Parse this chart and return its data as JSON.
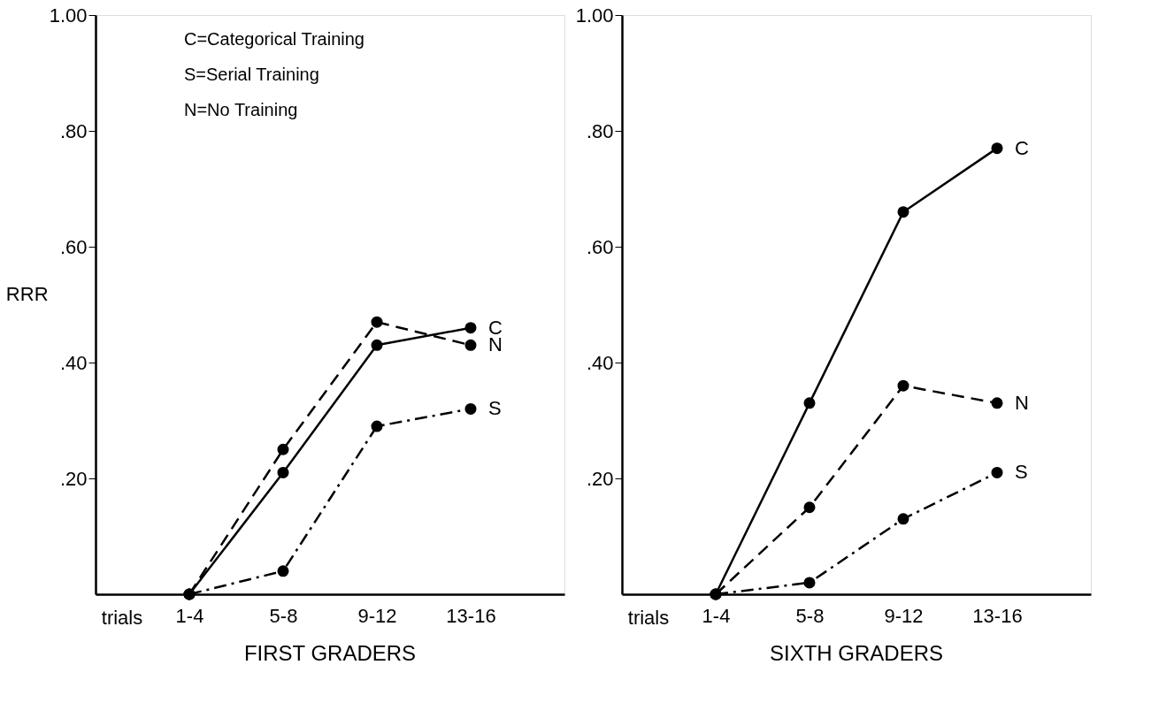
{
  "chart_data": [
    {
      "type": "line",
      "title": "FIRST GRADERS",
      "xlabel": "trials",
      "ylabel": "RRR",
      "categories": [
        "1-4",
        "5-8",
        "9-12",
        "13-16"
      ],
      "ylim": [
        0,
        1
      ],
      "yticks": [
        {
          "value": 0.2,
          "label": ".20"
        },
        {
          "value": 0.4,
          "label": ".40"
        },
        {
          "value": 0.6,
          "label": ".60"
        },
        {
          "value": 0.8,
          "label": ".80"
        },
        {
          "value": 1.0,
          "label": "1.00"
        }
      ],
      "grid": false,
      "legend": false,
      "marker": "circle",
      "annotations": [
        "C=Categorical Training",
        "S=Serial Training",
        "N=No Training"
      ],
      "series": [
        {
          "name": "C",
          "color": "#000000",
          "line_style": "solid",
          "values": [
            0,
            0.21,
            0.43,
            0.46
          ]
        },
        {
          "name": "N",
          "color": "#000000",
          "line_style": "dashed",
          "values": [
            0,
            0.25,
            0.47,
            0.43
          ]
        },
        {
          "name": "S",
          "color": "#000000",
          "line_style": "dashdot",
          "values": [
            0,
            0.04,
            0.29,
            0.32
          ]
        }
      ]
    },
    {
      "type": "line",
      "title": "SIXTH GRADERS",
      "xlabel": "trials",
      "categories": [
        "1-4",
        "5-8",
        "9-12",
        "13-16"
      ],
      "ylim": [
        0,
        1
      ],
      "yticks": [
        {
          "value": 0.2,
          "label": ".20"
        },
        {
          "value": 0.4,
          "label": ".40"
        },
        {
          "value": 0.6,
          "label": ".60"
        },
        {
          "value": 0.8,
          "label": ".80"
        },
        {
          "value": 1.0,
          "label": "1.00"
        }
      ],
      "grid": false,
      "legend": false,
      "marker": "circle",
      "series": [
        {
          "name": "C",
          "color": "#000000",
          "line_style": "solid",
          "values": [
            0,
            0.33,
            0.66,
            0.77
          ]
        },
        {
          "name": "N",
          "color": "#000000",
          "line_style": "dashed",
          "values": [
            0,
            0.15,
            0.36,
            0.33
          ]
        },
        {
          "name": "S",
          "color": "#000000",
          "line_style": "dashdot",
          "values": [
            0,
            0.02,
            0.13,
            0.21
          ]
        }
      ]
    }
  ]
}
